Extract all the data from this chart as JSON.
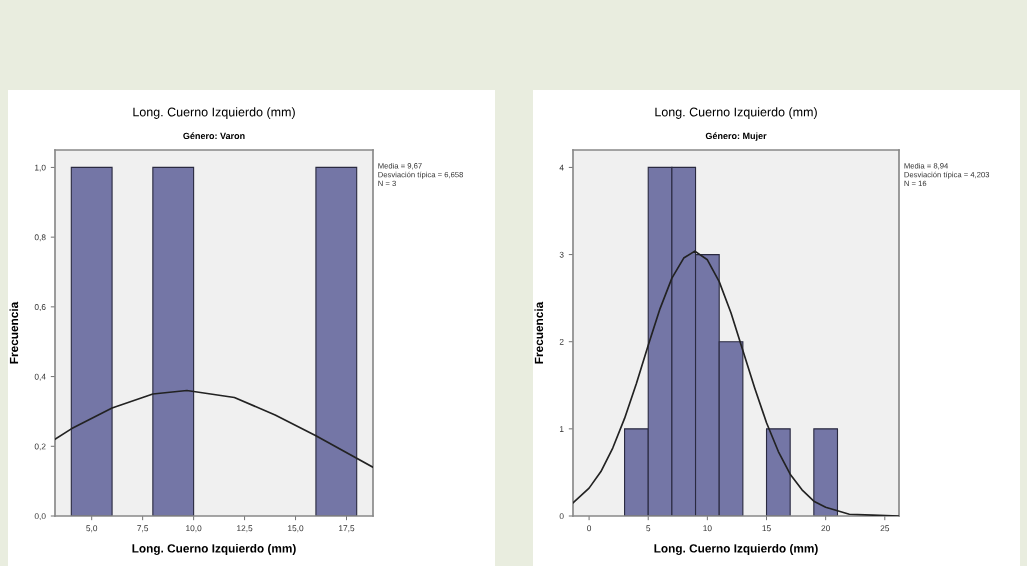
{
  "chart_data": [
    {
      "type": "histogram",
      "title": "Long. Cuerno Izquierdo (mm)",
      "subtitle": "Género: Varon",
      "xlabel": "Long. Cuerno Izquierdo (mm)",
      "ylabel": "Frecuencia",
      "series": [
        {
          "type": "histogram",
          "bins": [
            4,
            6,
            8,
            10,
            12,
            14,
            16,
            18
          ],
          "values": [
            1,
            0,
            1,
            0,
            0,
            0,
            1
          ],
          "color": "#7476a6"
        },
        {
          "type": "line",
          "color": "#222222",
          "x": [
            3.2,
            4,
            6,
            8,
            9.67,
            12,
            14,
            16,
            18.8
          ],
          "values": [
            0.22,
            0.25,
            0.31,
            0.35,
            0.36,
            0.34,
            0.29,
            0.23,
            0.14
          ]
        }
      ],
      "xlim": [
        3.2,
        18.8
      ],
      "xticks": [
        {
          "value": 5,
          "label": "5,0"
        },
        {
          "value": 7.5,
          "label": "7,5"
        },
        {
          "value": 10,
          "label": "10,0"
        },
        {
          "value": 12.5,
          "label": "12,5"
        },
        {
          "value": 15,
          "label": "15,0"
        },
        {
          "value": 17.5,
          "label": "17,5"
        }
      ],
      "ylim": [
        0,
        1.05
      ],
      "yticks": [
        {
          "value": 0,
          "label": "0,0"
        },
        {
          "value": 0.2,
          "label": "0,2"
        },
        {
          "value": 0.4,
          "label": "0,4"
        },
        {
          "value": 0.6,
          "label": "0,6"
        },
        {
          "value": 0.8,
          "label": "0,8"
        },
        {
          "value": 1,
          "label": "1,0"
        }
      ],
      "grid": false,
      "annotations": [
        "Media = 9,67",
        "Desviación típica = 6,658",
        "N = 3"
      ]
    },
    {
      "type": "histogram",
      "title": "Long. Cuerno Izquierdo (mm)",
      "subtitle": "Género: Mujer",
      "xlabel": "Long. Cuerno Izquierdo (mm)",
      "ylabel": "Frecuencia",
      "series": [
        {
          "type": "histogram",
          "bins": [
            3,
            5,
            7,
            9,
            11,
            13,
            15,
            17,
            19,
            21
          ],
          "values": [
            1,
            4,
            4,
            3,
            2,
            0,
            1,
            0,
            1
          ],
          "color": "#7476a6"
        },
        {
          "type": "line",
          "color": "#222222",
          "x": [
            -1.36,
            0,
            1,
            2,
            3,
            4,
            5,
            6,
            7,
            8,
            8.94,
            10,
            11,
            12,
            13,
            14,
            15,
            16,
            17,
            18,
            19,
            20,
            22,
            24,
            26.2
          ],
          "values": [
            0.15,
            0.32,
            0.51,
            0.78,
            1.12,
            1.52,
            1.96,
            2.38,
            2.73,
            2.96,
            3.04,
            2.94,
            2.69,
            2.33,
            1.9,
            1.47,
            1.07,
            0.74,
            0.48,
            0.3,
            0.17,
            0.1,
            0.02,
            0.01,
            0
          ]
        }
      ],
      "xlim": [
        -1.36,
        26.2
      ],
      "xticks": [
        0,
        5,
        10,
        15,
        20,
        25
      ],
      "ylim": [
        0,
        4.2
      ],
      "yticks": [
        0,
        1,
        2,
        3,
        4
      ],
      "grid": false,
      "annotations": [
        "Media = 8,94",
        "Desviación típica = 4,203",
        "N = 16"
      ]
    }
  ]
}
